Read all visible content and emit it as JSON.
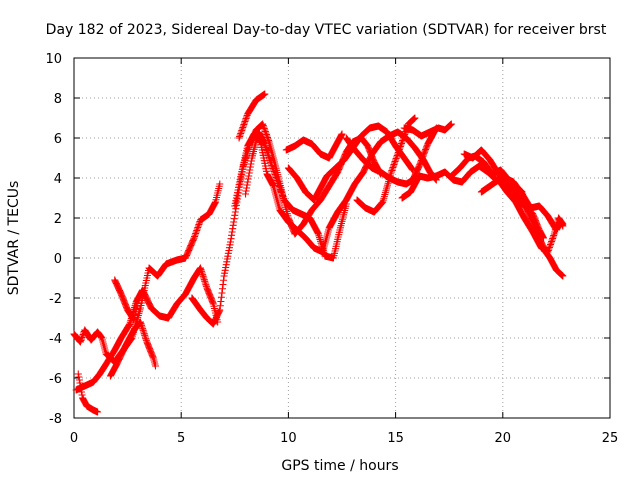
{
  "chart_data": {
    "type": "scatter",
    "title": "Day 182 of 2023, Sidereal Day-to-day VTEC variation (SDTVAR) for receiver brst",
    "xlabel": "GPS time / hours",
    "ylabel": "SDTVAR / TECUs",
    "xlim": [
      0,
      25
    ],
    "ylim": [
      -8,
      10
    ],
    "xticks": [
      0,
      5,
      10,
      15,
      20,
      25
    ],
    "yticks": [
      -8,
      -6,
      -4,
      -2,
      0,
      2,
      4,
      6,
      8,
      10
    ],
    "xtick_labels": [
      "0",
      "5",
      "10",
      "15",
      "20",
      "25"
    ],
    "ytick_labels": [
      "-8",
      "-6",
      "-4",
      "-2",
      "0",
      "2",
      "4",
      "6",
      "8",
      "10"
    ],
    "grid": true,
    "legend": "none",
    "marker": "+",
    "series": [
      {
        "name": "SDTVAR",
        "color": "#ff0000",
        "tracks": [
          [
            [
              0.0,
              -3.8
            ],
            [
              0.3,
              -4.2
            ],
            [
              0.5,
              -3.6
            ],
            [
              0.8,
              -4.1
            ],
            [
              1.1,
              -3.7
            ],
            [
              1.3,
              -4.0
            ],
            [
              1.5,
              -4.8
            ],
            [
              1.9,
              -5.2
            ],
            [
              2.3,
              -4.6
            ],
            [
              2.7,
              -4.0
            ],
            [
              3.1,
              -2.5
            ],
            [
              3.5,
              -0.5
            ],
            [
              3.9,
              -0.9
            ],
            [
              4.3,
              -0.3
            ],
            [
              4.8,
              -0.1
            ],
            [
              5.2,
              0.0
            ],
            [
              5.6,
              1.0
            ],
            [
              5.9,
              1.9
            ],
            [
              6.3,
              2.2
            ],
            [
              6.6,
              2.8
            ],
            [
              6.8,
              3.7
            ]
          ],
          [
            [
              0.1,
              -6.6
            ],
            [
              0.5,
              -6.4
            ],
            [
              0.9,
              -6.2
            ],
            [
              1.2,
              -5.8
            ],
            [
              1.5,
              -5.3
            ],
            [
              1.9,
              -4.6
            ],
            [
              2.2,
              -4.0
            ],
            [
              2.6,
              -3.3
            ],
            [
              2.9,
              -2.2
            ],
            [
              3.2,
              -1.6
            ],
            [
              3.6,
              -2.5
            ],
            [
              4.0,
              -2.9
            ],
            [
              4.4,
              -3.0
            ],
            [
              4.8,
              -2.3
            ],
            [
              5.2,
              -1.8
            ],
            [
              5.6,
              -1.0
            ],
            [
              5.9,
              -0.5
            ],
            [
              6.2,
              -1.5
            ],
            [
              6.5,
              -2.3
            ],
            [
              6.7,
              -3.2
            ]
          ],
          [
            [
              0.2,
              -5.8
            ],
            [
              0.4,
              -7.0
            ],
            [
              0.6,
              -7.4
            ],
            [
              0.9,
              -7.6
            ],
            [
              1.1,
              -7.7
            ]
          ],
          [
            [
              1.7,
              -5.9
            ],
            [
              2.0,
              -5.3
            ],
            [
              2.4,
              -4.4
            ],
            [
              2.8,
              -3.6
            ],
            [
              3.1,
              -3.2
            ],
            [
              3.4,
              -4.2
            ],
            [
              3.7,
              -5.0
            ],
            [
              3.8,
              -5.4
            ]
          ],
          [
            [
              1.9,
              -1.1
            ],
            [
              2.2,
              -1.8
            ],
            [
              2.5,
              -2.6
            ],
            [
              2.8,
              -3.1
            ],
            [
              3.0,
              -2.0
            ]
          ],
          [
            [
              5.5,
              -2.0
            ],
            [
              5.9,
              -2.6
            ],
            [
              6.2,
              -3.0
            ],
            [
              6.5,
              -3.3
            ],
            [
              6.8,
              -2.6
            ],
            [
              7.0,
              -0.9
            ],
            [
              7.3,
              0.8
            ],
            [
              7.6,
              2.8
            ],
            [
              7.9,
              4.6
            ],
            [
              8.2,
              5.7
            ],
            [
              8.5,
              6.4
            ],
            [
              8.8,
              6.7
            ],
            [
              9.1,
              5.8
            ],
            [
              9.4,
              4.6
            ],
            [
              9.7,
              3.3
            ],
            [
              10.0,
              2.0
            ],
            [
              10.3,
              1.2
            ],
            [
              10.7,
              1.7
            ],
            [
              11.1,
              2.4
            ],
            [
              11.5,
              2.9
            ],
            [
              11.9,
              3.6
            ],
            [
              12.3,
              4.3
            ],
            [
              12.7,
              5.3
            ],
            [
              13.0,
              5.8
            ],
            [
              13.4,
              6.0
            ],
            [
              13.7,
              5.6
            ],
            [
              14.0,
              4.8
            ],
            [
              14.3,
              4.2
            ]
          ],
          [
            [
              7.5,
              2.6
            ],
            [
              7.8,
              4.2
            ],
            [
              8.1,
              5.6
            ],
            [
              8.4,
              6.2
            ],
            [
              8.7,
              5.8
            ],
            [
              9.0,
              4.2
            ],
            [
              9.3,
              3.6
            ],
            [
              9.6,
              2.4
            ],
            [
              10.0,
              1.8
            ],
            [
              10.4,
              1.4
            ],
            [
              10.8,
              1.0
            ],
            [
              11.2,
              0.5
            ],
            [
              11.6,
              0.3
            ],
            [
              11.9,
              1.5
            ],
            [
              12.3,
              2.3
            ],
            [
              12.7,
              2.9
            ],
            [
              13.1,
              3.7
            ],
            [
              13.5,
              4.3
            ],
            [
              13.9,
              5.2
            ],
            [
              14.3,
              5.8
            ],
            [
              14.7,
              6.1
            ],
            [
              15.1,
              6.3
            ],
            [
              15.5,
              6.0
            ],
            [
              15.9,
              5.5
            ],
            [
              16.3,
              4.9
            ],
            [
              16.6,
              4.3
            ],
            [
              16.9,
              3.9
            ]
          ],
          [
            [
              8.0,
              3.2
            ],
            [
              8.3,
              5.0
            ],
            [
              8.6,
              6.3
            ],
            [
              8.9,
              5.7
            ],
            [
              9.2,
              4.7
            ],
            [
              9.5,
              3.8
            ],
            [
              9.8,
              2.9
            ],
            [
              10.2,
              2.4
            ],
            [
              10.6,
              2.2
            ],
            [
              11.0,
              2.0
            ],
            [
              11.4,
              1.2
            ],
            [
              11.7,
              0.1
            ],
            [
              12.1,
              0.0
            ],
            [
              12.4,
              1.4
            ],
            [
              12.7,
              2.7
            ]
          ],
          [
            [
              7.7,
              6.0
            ],
            [
              8.1,
              7.2
            ],
            [
              8.5,
              7.9
            ],
            [
              8.9,
              8.2
            ]
          ],
          [
            [
              9.9,
              5.4
            ],
            [
              10.3,
              5.6
            ],
            [
              10.7,
              5.9
            ],
            [
              11.1,
              5.7
            ],
            [
              11.5,
              5.2
            ],
            [
              11.9,
              5.0
            ],
            [
              12.2,
              5.6
            ],
            [
              12.5,
              6.2
            ]
          ],
          [
            [
              10.0,
              4.5
            ],
            [
              10.4,
              4.0
            ],
            [
              10.8,
              3.3
            ],
            [
              11.2,
              2.9
            ],
            [
              11.5,
              3.5
            ],
            [
              11.8,
              4.1
            ],
            [
              12.2,
              4.5
            ],
            [
              12.6,
              4.9
            ],
            [
              13.0,
              5.5
            ],
            [
              13.4,
              6.1
            ],
            [
              13.8,
              6.5
            ],
            [
              14.2,
              6.6
            ],
            [
              14.6,
              6.3
            ],
            [
              15.0,
              5.6
            ],
            [
              15.4,
              5.0
            ],
            [
              15.8,
              4.4
            ]
          ],
          [
            [
              12.7,
              6.0
            ],
            [
              13.1,
              5.4
            ],
            [
              13.5,
              4.9
            ],
            [
              13.9,
              4.5
            ],
            [
              14.3,
              4.3
            ],
            [
              14.7,
              4.0
            ],
            [
              15.1,
              3.8
            ],
            [
              15.5,
              3.7
            ],
            [
              15.8,
              3.9
            ],
            [
              16.1,
              4.6
            ],
            [
              16.5,
              5.7
            ],
            [
              16.9,
              6.5
            ]
          ],
          [
            [
              13.2,
              2.9
            ],
            [
              13.6,
              2.5
            ],
            [
              14.0,
              2.3
            ],
            [
              14.4,
              2.8
            ],
            [
              14.8,
              4.3
            ],
            [
              15.2,
              5.5
            ],
            [
              15.6,
              6.7
            ],
            [
              15.9,
              7.0
            ]
          ],
          [
            [
              15.4,
              6.5
            ],
            [
              15.8,
              6.4
            ],
            [
              16.2,
              6.1
            ],
            [
              16.6,
              6.3
            ],
            [
              17.0,
              6.5
            ],
            [
              17.3,
              6.4
            ],
            [
              17.6,
              6.7
            ]
          ],
          [
            [
              15.3,
              3.0
            ],
            [
              15.7,
              3.3
            ],
            [
              16.1,
              4.1
            ],
            [
              16.5,
              4.0
            ],
            [
              16.9,
              4.1
            ],
            [
              17.3,
              4.3
            ],
            [
              17.7,
              3.9
            ],
            [
              18.1,
              3.8
            ],
            [
              18.5,
              4.3
            ],
            [
              18.9,
              4.6
            ],
            [
              19.3,
              4.3
            ],
            [
              19.7,
              3.9
            ],
            [
              20.1,
              4.0
            ],
            [
              20.5,
              3.8
            ],
            [
              20.9,
              3.2
            ],
            [
              21.3,
              2.5
            ],
            [
              21.7,
              2.6
            ],
            [
              22.1,
              2.1
            ],
            [
              22.5,
              1.4
            ],
            [
              22.7,
              1.8
            ],
            [
              22.8,
              1.6
            ]
          ],
          [
            [
              17.6,
              4.1
            ],
            [
              18.0,
              4.5
            ],
            [
              18.4,
              5.0
            ],
            [
              18.7,
              5.1
            ],
            [
              19.1,
              4.8
            ],
            [
              19.5,
              4.2
            ],
            [
              19.9,
              4.4
            ],
            [
              20.2,
              4.0
            ],
            [
              20.6,
              3.6
            ],
            [
              20.9,
              3.3
            ],
            [
              21.1,
              2.5
            ],
            [
              21.4,
              1.8
            ],
            [
              21.7,
              1.0
            ],
            [
              22.0,
              0.3
            ],
            [
              22.2,
              0.0
            ],
            [
              22.5,
              -0.6
            ],
            [
              22.8,
              -0.9
            ]
          ],
          [
            [
              18.2,
              5.2
            ],
            [
              18.6,
              5.0
            ],
            [
              19.0,
              5.4
            ],
            [
              19.4,
              4.9
            ],
            [
              19.8,
              4.2
            ],
            [
              20.2,
              3.7
            ],
            [
              20.6,
              3.2
            ],
            [
              21.0,
              2.6
            ],
            [
              21.4,
              2.2
            ],
            [
              21.7,
              1.4
            ],
            [
              21.9,
              1.0
            ]
          ],
          [
            [
              19.0,
              3.3
            ],
            [
              19.4,
              3.6
            ],
            [
              19.8,
              3.9
            ],
            [
              20.2,
              3.3
            ],
            [
              20.6,
              2.8
            ],
            [
              21.0,
              2.0
            ],
            [
              21.4,
              1.3
            ],
            [
              21.8,
              0.5
            ],
            [
              22.1,
              0.3
            ],
            [
              22.4,
              1.2
            ],
            [
              22.6,
              2.0
            ],
            [
              22.8,
              1.7
            ]
          ]
        ]
      }
    ]
  }
}
